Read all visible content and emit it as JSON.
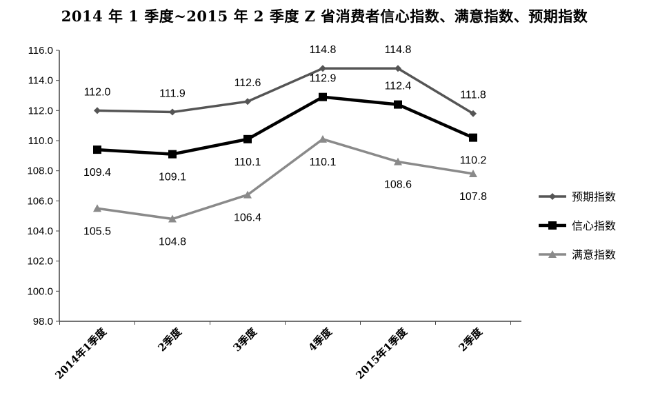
{
  "chart_data": {
    "type": "line",
    "title": "2014 年 1 季度~2015 年 2 季度 Z 省消费者信心指数、满意指数、预期指数",
    "categories": [
      "2014年1季度",
      "2季度",
      "3季度",
      "4季度",
      "2015年1季度",
      "2季度"
    ],
    "ylim": [
      98.0,
      116.0
    ],
    "yticks": [
      "98.0",
      "100.0",
      "102.0",
      "104.0",
      "106.0",
      "108.0",
      "110.0",
      "112.0",
      "114.0",
      "116.0"
    ],
    "grid": false,
    "legend_position": "right",
    "series": [
      {
        "name": "预期指数",
        "color": "#555555",
        "marker": "diamond",
        "values": [
          112.0,
          111.9,
          112.6,
          114.8,
          114.8,
          111.8
        ],
        "labels": [
          "112.0",
          "111.9",
          "112.6",
          "114.8",
          "114.8",
          "111.8"
        ]
      },
      {
        "name": "信心指数",
        "color": "#000000",
        "marker": "square",
        "values": [
          109.4,
          109.1,
          110.1,
          112.9,
          112.4,
          110.2
        ],
        "labels": [
          "109.4",
          "109.1",
          "110.1",
          "112.9",
          "112.4",
          "110.2"
        ]
      },
      {
        "name": "满意指数",
        "color": "#8a8a8a",
        "marker": "triangle",
        "values": [
          105.5,
          104.8,
          106.4,
          110.1,
          108.6,
          107.8
        ],
        "labels": [
          "105.5",
          "104.8",
          "106.4",
          "110.1",
          "108.6",
          "107.8"
        ]
      }
    ]
  }
}
